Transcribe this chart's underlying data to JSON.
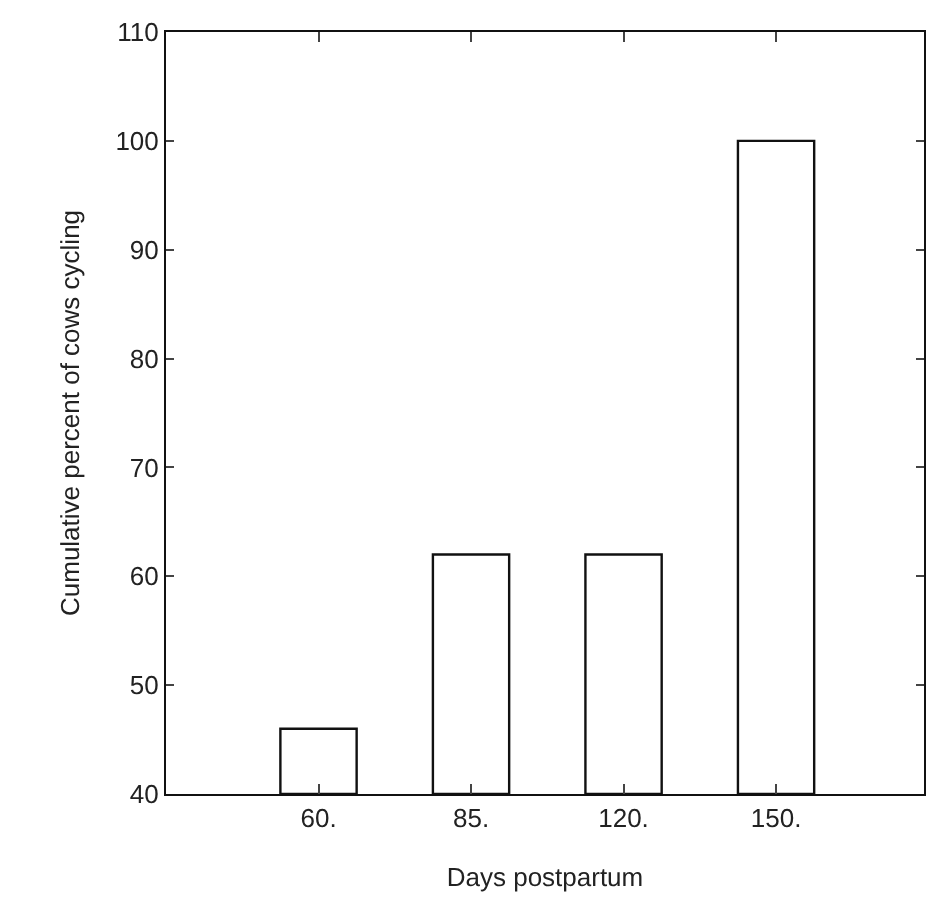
{
  "chart_data": {
    "type": "bar",
    "xlabel": "Days postpartum",
    "ylabel": "Cumulative percent of cows cycling",
    "categories": [
      "60.",
      "85.",
      "120.",
      "150."
    ],
    "values": [
      46,
      62,
      62,
      100
    ],
    "color": "#ffffff",
    "ylim": [
      40,
      110
    ],
    "yticks": [
      40,
      50,
      60,
      70,
      80,
      90,
      100,
      110
    ]
  }
}
